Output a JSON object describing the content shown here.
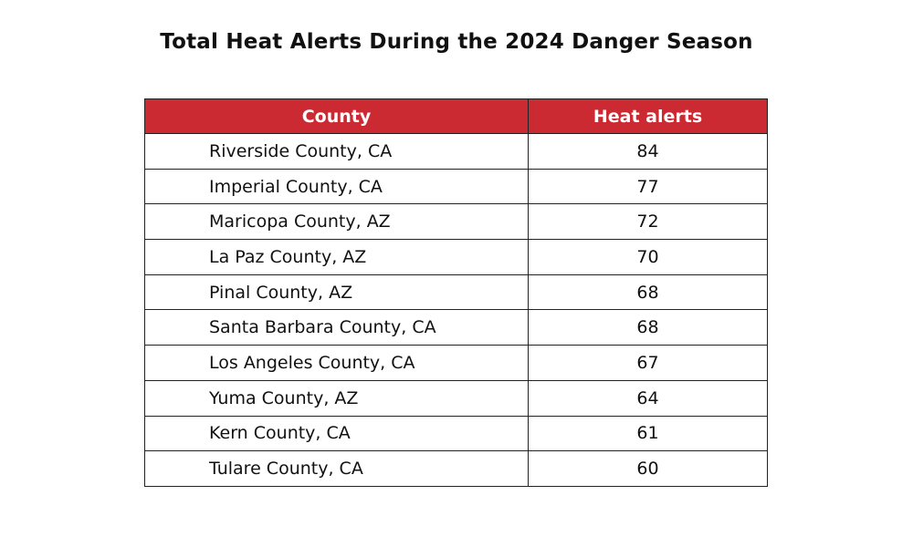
{
  "title": "Total Heat Alerts During the 2024 Danger Season",
  "table": {
    "header": [
      "County",
      "Heat alerts"
    ],
    "rows": [
      [
        "Riverside County, CA",
        84
      ],
      [
        "Imperial County, CA",
        77
      ],
      [
        "Maricopa County, AZ",
        72
      ],
      [
        "La Paz County, AZ",
        70
      ],
      [
        "Pinal County, AZ",
        68
      ],
      [
        "Santa Barbara County, CA",
        68
      ],
      [
        "Los Angeles County, CA",
        67
      ],
      [
        "Yuma County, AZ",
        64
      ],
      [
        "Kern County, CA",
        61
      ],
      [
        "Tulare County, CA",
        60
      ]
    ]
  }
}
